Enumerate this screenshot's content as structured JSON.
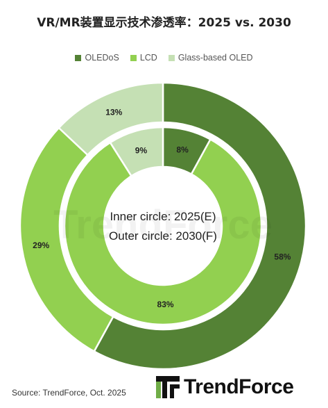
{
  "chart_data": {
    "type": "donut",
    "title": "VR/MR装置显示技术渗透率：2025 vs. 2030",
    "categories": [
      "OLEDoS",
      "LCD",
      "Glass-based OLED"
    ],
    "series": [
      {
        "name": "Inner circle: 2025(E)",
        "values": [
          8,
          83,
          9
        ],
        "labels": [
          "8%",
          "83%",
          "9%"
        ]
      },
      {
        "name": "Outer circle: 2030(F)",
        "values": [
          58,
          29,
          13
        ],
        "labels": [
          "58%",
          "29%",
          "13%"
        ]
      }
    ],
    "legend_position": "top",
    "colors": [
      "#548235",
      "#92d050",
      "#c5e0b4"
    ]
  },
  "source": "Source: TrendForce, Oct. 2025",
  "logo": {
    "text": "TrendForce"
  },
  "watermark": "TrendForce"
}
